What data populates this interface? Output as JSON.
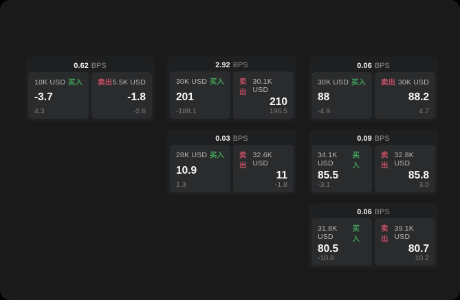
{
  "labels": {
    "bps": "BPS",
    "buy": "买入",
    "sell": "卖出"
  },
  "colors": {
    "buy": "#42a05c",
    "sell": "#c25064",
    "screen_bg": "#1a1a1b",
    "card_bg": "#1e1f20",
    "panel_bg": "#2a2b2c"
  },
  "cards": [
    {
      "bps": "0.62",
      "buy": {
        "amount": "10K USD",
        "price": "-3.7",
        "sub": "4.3"
      },
      "sell": {
        "amount": "5.5K USD",
        "price": "-1.8",
        "sub": "-2.6"
      }
    },
    {
      "bps": "2.92",
      "buy": {
        "amount": "30K USD",
        "price": "201",
        "sub": "-188.1"
      },
      "sell": {
        "amount": "30.1K USD",
        "price": "210",
        "sub": "196.5"
      }
    },
    {
      "bps": "0.06",
      "buy": {
        "amount": "30K USD",
        "price": "88",
        "sub": "-4.9"
      },
      "sell": {
        "amount": "30K USD",
        "price": "88.2",
        "sub": "4.7"
      }
    },
    {
      "bps": "0.03",
      "buy": {
        "amount": "28K USD",
        "price": "10.9",
        "sub": "1.3"
      },
      "sell": {
        "amount": "32.6K USD",
        "price": "11",
        "sub": "-1.8"
      }
    },
    {
      "bps": "0.09",
      "buy": {
        "amount": "34.1K USD",
        "price": "85.5",
        "sub": "-3.1"
      },
      "sell": {
        "amount": "32.8K USD",
        "price": "85.8",
        "sub": "3.0"
      }
    },
    {
      "bps": "0.06",
      "buy": {
        "amount": "31.8K USD",
        "price": "80.5",
        "sub": "-10.8"
      },
      "sell": {
        "amount": "39.1K USD",
        "price": "80.7",
        "sub": "10.2"
      }
    }
  ]
}
